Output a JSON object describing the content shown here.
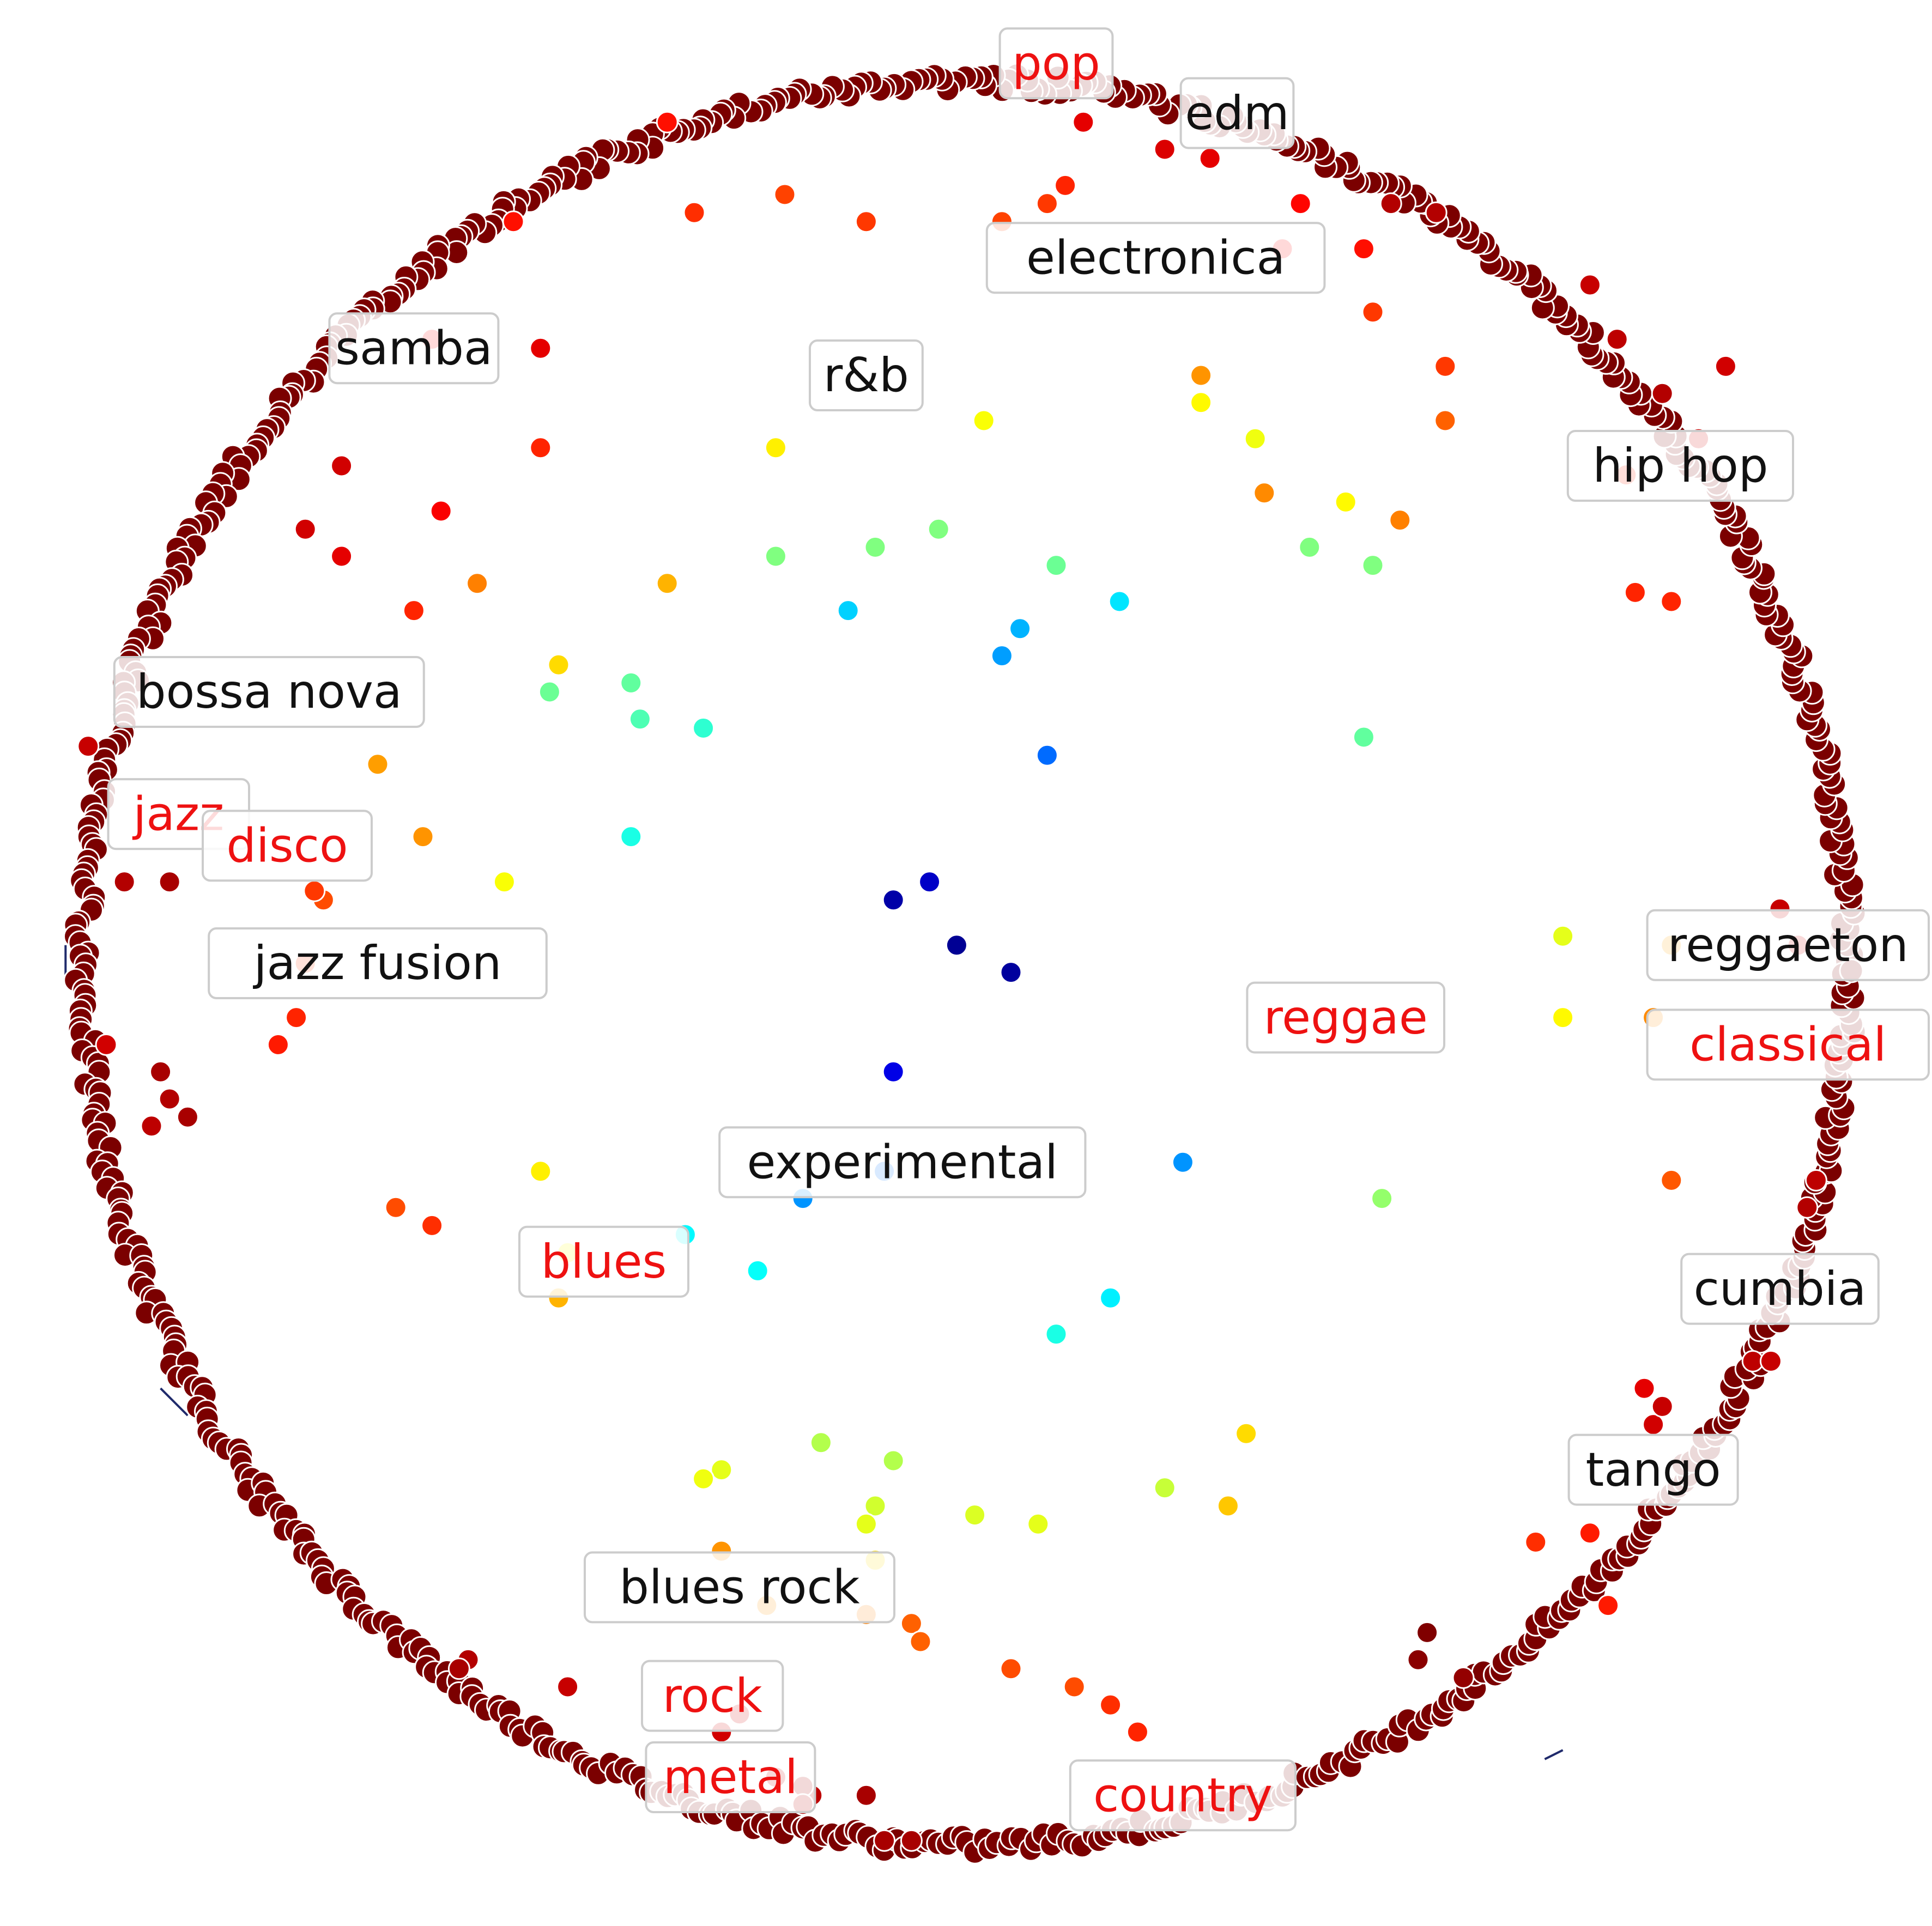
{
  "chart_data": {
    "type": "scatter",
    "layout": "poincare-disk",
    "title": "",
    "xlabel": "",
    "ylabel": "",
    "xlim": [
      -1.02,
      1.02
    ],
    "ylim": [
      -1.02,
      1.02
    ],
    "grid": false,
    "legend": "none",
    "colormap": "jet",
    "boundary_color": "#7b0000",
    "edge_color": "#1f2a6b",
    "labels": [
      {
        "text": "pop",
        "x": 0.1,
        "y": 0.995,
        "highlight": true
      },
      {
        "text": "edm",
        "x": 0.3,
        "y": 0.94,
        "highlight": false
      },
      {
        "text": "electronica",
        "x": 0.21,
        "y": 0.78,
        "highlight": false
      },
      {
        "text": "samba",
        "x": -0.61,
        "y": 0.68,
        "highlight": false
      },
      {
        "text": "r&b",
        "x": -0.11,
        "y": 0.65,
        "highlight": false
      },
      {
        "text": "hip hop",
        "x": 0.79,
        "y": 0.55,
        "highlight": false
      },
      {
        "text": "bossa nova",
        "x": -0.77,
        "y": 0.3,
        "highlight": false
      },
      {
        "text": "jazz",
        "x": -0.87,
        "y": 0.165,
        "highlight": true
      },
      {
        "text": "disco",
        "x": -0.75,
        "y": 0.13,
        "highlight": true
      },
      {
        "text": "jazz fusion",
        "x": -0.65,
        "y": 0.0,
        "highlight": false
      },
      {
        "text": "reggaeton",
        "x": 0.93,
        "y": 0.02,
        "highlight": false
      },
      {
        "text": "reggae",
        "x": 0.42,
        "y": -0.06,
        "highlight": true
      },
      {
        "text": "classical",
        "x": 1.0,
        "y": -0.09,
        "highlight": true
      },
      {
        "text": "experimental",
        "x": -0.07,
        "y": -0.22,
        "highlight": false
      },
      {
        "text": "blues",
        "x": -0.4,
        "y": -0.33,
        "highlight": true
      },
      {
        "text": "cumbia",
        "x": 0.9,
        "y": -0.36,
        "highlight": false
      },
      {
        "text": "tango",
        "x": 0.76,
        "y": -0.56,
        "highlight": false
      },
      {
        "text": "blues rock",
        "x": -0.25,
        "y": -0.69,
        "highlight": false
      },
      {
        "text": "rock",
        "x": -0.28,
        "y": -0.81,
        "highlight": true
      },
      {
        "text": "metal",
        "x": -0.26,
        "y": -0.9,
        "highlight": true
      },
      {
        "text": "country",
        "x": 0.24,
        "y": -0.92,
        "highlight": true
      }
    ],
    "boundary_points": [
      {
        "angle": 80,
        "count": 60
      },
      {
        "angle": 60,
        "count": 45
      },
      {
        "angle": 130,
        "count": 40
      },
      {
        "angle": 175,
        "count": 35
      },
      {
        "angle": 220,
        "count": 40
      },
      {
        "angle": 255,
        "count": 55
      },
      {
        "angle": 300,
        "count": 45
      },
      {
        "angle": 340,
        "count": 40
      },
      {
        "angle": 10,
        "count": 40
      },
      {
        "angle": 35,
        "count": 40
      }
    ],
    "points": [
      {
        "x": -0.08,
        "y": 0.07,
        "value": 0.04
      },
      {
        "x": -0.01,
        "y": 0.02,
        "value": 0.02
      },
      {
        "x": -0.04,
        "y": 0.09,
        "value": 0.07
      },
      {
        "x": 0.05,
        "y": -0.01,
        "value": 0.03
      },
      {
        "x": -0.08,
        "y": -0.12,
        "value": 0.1
      },
      {
        "x": 0.09,
        "y": 0.23,
        "value": 0.23
      },
      {
        "x": 0.04,
        "y": 0.34,
        "value": 0.28
      },
      {
        "x": 0.06,
        "y": 0.37,
        "value": 0.3
      },
      {
        "x": -0.13,
        "y": 0.39,
        "value": 0.33
      },
      {
        "x": 0.17,
        "y": 0.4,
        "value": 0.35
      },
      {
        "x": -0.18,
        "y": -0.26,
        "value": 0.27
      },
      {
        "x": -0.09,
        "y": -0.23,
        "value": 0.24
      },
      {
        "x": -0.31,
        "y": -0.3,
        "value": 0.37
      },
      {
        "x": -0.23,
        "y": -0.34,
        "value": 0.38
      },
      {
        "x": 0.24,
        "y": -0.22,
        "value": 0.27
      },
      {
        "x": 0.1,
        "y": -0.41,
        "value": 0.4
      },
      {
        "x": 0.16,
        "y": -0.37,
        "value": 0.36
      },
      {
        "x": -0.37,
        "y": 0.14,
        "value": 0.4
      },
      {
        "x": -0.29,
        "y": 0.26,
        "value": 0.42
      },
      {
        "x": -0.36,
        "y": 0.27,
        "value": 0.45
      },
      {
        "x": -0.46,
        "y": 0.3,
        "value": 0.48
      },
      {
        "x": -0.37,
        "y": 0.31,
        "value": 0.47
      },
      {
        "x": 0.45,
        "y": 0.44,
        "value": 0.5
      },
      {
        "x": 0.38,
        "y": 0.46,
        "value": 0.5
      },
      {
        "x": -0.1,
        "y": 0.46,
        "value": 0.5
      },
      {
        "x": -0.21,
        "y": 0.45,
        "value": 0.5
      },
      {
        "x": -0.03,
        "y": 0.48,
        "value": 0.5
      },
      {
        "x": 0.1,
        "y": 0.44,
        "value": 0.48
      },
      {
        "x": 0.44,
        "y": 0.25,
        "value": 0.47
      },
      {
        "x": 0.46,
        "y": -0.26,
        "value": 0.52
      },
      {
        "x": -0.08,
        "y": -0.55,
        "value": 0.55
      },
      {
        "x": -0.16,
        "y": -0.53,
        "value": 0.55
      },
      {
        "x": 0.22,
        "y": -0.58,
        "value": 0.57
      },
      {
        "x": 0.08,
        "y": -0.62,
        "value": 0.6
      },
      {
        "x": 0.01,
        "y": -0.61,
        "value": 0.59
      },
      {
        "x": -0.1,
        "y": -0.6,
        "value": 0.58
      },
      {
        "x": -0.11,
        "y": -0.62,
        "value": 0.6
      },
      {
        "x": -0.27,
        "y": -0.56,
        "value": 0.6
      },
      {
        "x": -0.29,
        "y": -0.57,
        "value": 0.61
      },
      {
        "x": 0.66,
        "y": 0.03,
        "value": 0.6
      },
      {
        "x": 0.66,
        "y": -0.06,
        "value": 0.63
      },
      {
        "x": -0.44,
        "y": -0.32,
        "value": 0.62
      },
      {
        "x": -0.47,
        "y": -0.23,
        "value": 0.64
      },
      {
        "x": -0.51,
        "y": 0.09,
        "value": 0.62
      },
      {
        "x": -0.45,
        "y": 0.33,
        "value": 0.66
      },
      {
        "x": -0.33,
        "y": 0.42,
        "value": 0.7
      },
      {
        "x": -0.21,
        "y": 0.57,
        "value": 0.64
      },
      {
        "x": 0.26,
        "y": 0.62,
        "value": 0.63
      },
      {
        "x": 0.02,
        "y": 0.6,
        "value": 0.62
      },
      {
        "x": 0.32,
        "y": 0.58,
        "value": 0.61
      },
      {
        "x": 0.42,
        "y": 0.51,
        "value": 0.63
      },
      {
        "x": -0.45,
        "y": -0.37,
        "value": 0.7
      },
      {
        "x": -0.1,
        "y": -0.66,
        "value": 0.66
      },
      {
        "x": 0.31,
        "y": -0.52,
        "value": 0.66
      },
      {
        "x": 0.29,
        "y": -0.6,
        "value": 0.68
      },
      {
        "x": 0.78,
        "y": 0.02,
        "value": 0.72
      },
      {
        "x": 0.76,
        "y": -0.06,
        "value": 0.74
      },
      {
        "x": 0.26,
        "y": 0.65,
        "value": 0.73
      },
      {
        "x": 0.33,
        "y": 0.52,
        "value": 0.74
      },
      {
        "x": 0.48,
        "y": 0.49,
        "value": 0.75
      },
      {
        "x": -0.65,
        "y": 0.22,
        "value": 0.72
      },
      {
        "x": -0.6,
        "y": 0.14,
        "value": 0.73
      },
      {
        "x": -0.54,
        "y": 0.42,
        "value": 0.75
      },
      {
        "x": -0.27,
        "y": -0.65,
        "value": 0.73
      },
      {
        "x": -0.22,
        "y": -0.71,
        "value": 0.73
      },
      {
        "x": -0.11,
        "y": -0.72,
        "value": 0.75
      },
      {
        "x": -0.06,
        "y": -0.73,
        "value": 0.78
      },
      {
        "x": -0.05,
        "y": -0.75,
        "value": 0.78
      },
      {
        "x": 0.05,
        "y": -0.78,
        "value": 0.8
      },
      {
        "x": 0.12,
        "y": -0.8,
        "value": 0.8
      },
      {
        "x": 0.16,
        "y": -0.82,
        "value": 0.83
      },
      {
        "x": 0.19,
        "y": -0.85,
        "value": 0.84
      },
      {
        "x": 0.71,
        "y": -0.71,
        "value": 0.85
      },
      {
        "x": 0.69,
        "y": -0.63,
        "value": 0.85
      },
      {
        "x": 0.63,
        "y": -0.64,
        "value": 0.83
      },
      {
        "x": 0.78,
        "y": -0.24,
        "value": 0.79
      },
      {
        "x": -0.73,
        "y": 0.0,
        "value": 0.82
      },
      {
        "x": -0.74,
        "y": -0.06,
        "value": 0.84
      },
      {
        "x": -0.76,
        "y": -0.09,
        "value": 0.85
      },
      {
        "x": -0.71,
        "y": 0.07,
        "value": 0.8
      },
      {
        "x": -0.72,
        "y": 0.08,
        "value": 0.82
      },
      {
        "x": -0.59,
        "y": -0.29,
        "value": 0.83
      },
      {
        "x": -0.63,
        "y": -0.27,
        "value": 0.8
      },
      {
        "x": -0.61,
        "y": 0.39,
        "value": 0.84
      },
      {
        "x": -0.47,
        "y": 0.57,
        "value": 0.84
      },
      {
        "x": 0.45,
        "y": 0.72,
        "value": 0.82
      },
      {
        "x": 0.53,
        "y": 0.66,
        "value": 0.82
      },
      {
        "x": 0.53,
        "y": 0.6,
        "value": 0.78
      },
      {
        "x": -0.2,
        "y": 0.85,
        "value": 0.81
      },
      {
        "x": -0.3,
        "y": 0.83,
        "value": 0.83
      },
      {
        "x": -0.11,
        "y": 0.82,
        "value": 0.82
      },
      {
        "x": 0.09,
        "y": 0.84,
        "value": 0.82
      },
      {
        "x": 0.04,
        "y": 0.82,
        "value": 0.81
      },
      {
        "x": 0.11,
        "y": 0.86,
        "value": 0.84
      },
      {
        "x": 0.74,
        "y": 0.41,
        "value": 0.84
      },
      {
        "x": 0.78,
        "y": 0.4,
        "value": 0.84
      },
      {
        "x": 0.73,
        "y": 0.54,
        "value": 0.84
      },
      {
        "x": 0.37,
        "y": 0.84,
        "value": 0.87
      },
      {
        "x": 0.44,
        "y": 0.79,
        "value": 0.86
      },
      {
        "x": 0.35,
        "y": 0.79,
        "value": 0.88
      },
      {
        "x": -0.33,
        "y": 0.93,
        "value": 0.86
      },
      {
        "x": -0.5,
        "y": 0.82,
        "value": 0.86
      },
      {
        "x": -0.69,
        "y": 0.55,
        "value": 0.92
      },
      {
        "x": -0.58,
        "y": 0.5,
        "value": 0.88
      },
      {
        "x": -0.69,
        "y": 0.45,
        "value": 0.9
      },
      {
        "x": -0.73,
        "y": 0.48,
        "value": 0.92
      },
      {
        "x": -0.59,
        "y": 0.69,
        "value": 0.88
      },
      {
        "x": -0.47,
        "y": 0.68,
        "value": 0.9
      },
      {
        "x": -0.97,
        "y": 0.24,
        "value": 0.93
      },
      {
        "x": -0.93,
        "y": 0.09,
        "value": 0.95
      },
      {
        "x": -0.88,
        "y": 0.09,
        "value": 0.96
      },
      {
        "x": -0.89,
        "y": -0.12,
        "value": 0.96
      },
      {
        "x": -0.88,
        "y": -0.15,
        "value": 0.95
      },
      {
        "x": -0.86,
        "y": -0.17,
        "value": 0.96
      },
      {
        "x": -0.9,
        "y": -0.18,
        "value": 0.94
      },
      {
        "x": -0.95,
        "y": -0.09,
        "value": 0.92
      },
      {
        "x": 0.13,
        "y": 0.93,
        "value": 0.9
      },
      {
        "x": 0.27,
        "y": 0.89,
        "value": 0.9
      },
      {
        "x": 0.22,
        "y": 0.9,
        "value": 0.91
      },
      {
        "x": 0.47,
        "y": 0.84,
        "value": 0.95
      },
      {
        "x": 0.52,
        "y": 0.83,
        "value": 0.95
      },
      {
        "x": 0.77,
        "y": 0.63,
        "value": 0.95
      },
      {
        "x": 0.81,
        "y": 0.58,
        "value": 0.92
      },
      {
        "x": 0.69,
        "y": 0.75,
        "value": 0.93
      },
      {
        "x": 0.72,
        "y": 0.69,
        "value": 0.94
      },
      {
        "x": 0.84,
        "y": 0.66,
        "value": 0.92
      },
      {
        "x": 0.9,
        "y": 0.06,
        "value": 0.93
      },
      {
        "x": 0.92,
        "y": 0.02,
        "value": 0.92
      },
      {
        "x": 0.94,
        "y": -0.24,
        "value": 0.94
      },
      {
        "x": 0.93,
        "y": -0.27,
        "value": 0.95
      },
      {
        "x": 0.87,
        "y": -0.44,
        "value": 0.94
      },
      {
        "x": 0.89,
        "y": -0.44,
        "value": 0.93
      },
      {
        "x": 0.75,
        "y": -0.47,
        "value": 0.9
      },
      {
        "x": 0.76,
        "y": -0.51,
        "value": 0.92
      },
      {
        "x": 0.77,
        "y": -0.49,
        "value": 0.93
      },
      {
        "x": -0.44,
        "y": -0.8,
        "value": 0.93
      },
      {
        "x": -0.55,
        "y": -0.77,
        "value": 0.95
      },
      {
        "x": -0.56,
        "y": -0.78,
        "value": 0.96
      },
      {
        "x": -0.25,
        "y": -0.83,
        "value": 0.92
      },
      {
        "x": -0.27,
        "y": -0.85,
        "value": 0.92
      },
      {
        "x": -0.21,
        "y": -0.9,
        "value": 0.93
      },
      {
        "x": -0.17,
        "y": -0.92,
        "value": 0.94
      },
      {
        "x": -0.18,
        "y": -0.91,
        "value": 0.96
      },
      {
        "x": -0.18,
        "y": -0.93,
        "value": 0.95
      },
      {
        "x": -0.11,
        "y": -0.92,
        "value": 0.96
      },
      {
        "x": -0.09,
        "y": -0.97,
        "value": 0.96
      },
      {
        "x": -0.06,
        "y": -0.97,
        "value": 0.96
      },
      {
        "x": 0.51,
        "y": -0.74,
        "value": 1.0
      },
      {
        "x": 0.5,
        "y": -0.77,
        "value": 0.99
      },
      {
        "x": 0.55,
        "y": -0.79,
        "value": 0.98
      }
    ]
  }
}
